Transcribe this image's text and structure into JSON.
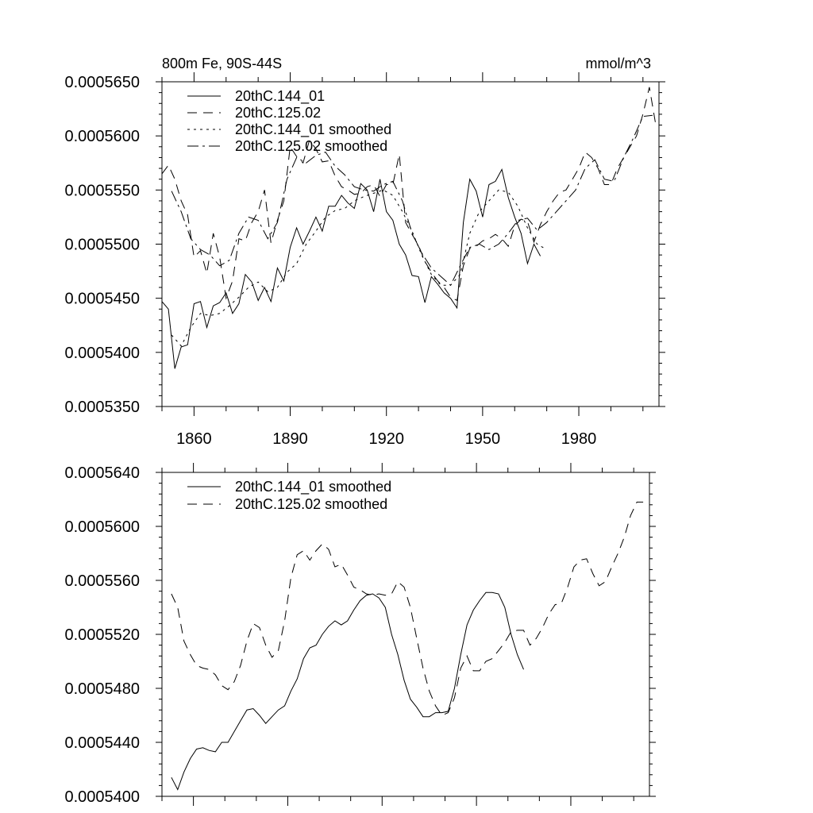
{
  "chart_data": [
    {
      "type": "line",
      "title": "800m Fe, 90S-44S",
      "units": "mmol/m^3",
      "xlim": [
        1850,
        2005
      ],
      "ylim": [
        0.000535,
        0.000565
      ],
      "xticks": [
        1860,
        1890,
        1920,
        1950,
        1980
      ],
      "xtick_labels": [
        "1860",
        "1890",
        "1920",
        "1950",
        "1980"
      ],
      "yticks": [
        0.000535,
        0.00054,
        0.000545,
        0.00055,
        0.000555,
        0.00056,
        0.000565
      ],
      "ytick_labels": [
        "0.0005350",
        "0.0005400",
        "0.0005450",
        "0.0005500",
        "0.0005550",
        "0.0005600",
        "0.0005650"
      ],
      "legend_position": "top-left",
      "series": [
        {
          "name": "20thC.144_01",
          "dash": "",
          "x": [
            1850,
            1852,
            1854,
            1856,
            1858,
            1860,
            1862,
            1864,
            1866,
            1868,
            1870,
            1872,
            1874,
            1876,
            1878,
            1880,
            1882,
            1884,
            1886,
            1888,
            1890,
            1892,
            1894,
            1896,
            1898,
            1900,
            1902,
            1904,
            1906,
            1908,
            1910,
            1912,
            1914,
            1916,
            1918,
            1920,
            1922,
            1924,
            1926,
            1928,
            1930,
            1932,
            1934,
            1936,
            1938,
            1940,
            1942,
            1944,
            1946,
            1948,
            1950,
            1952,
            1954,
            1956,
            1958,
            1960,
            1962,
            1964,
            1966,
            1968,
            1970
          ],
          "y": [
            0.0005447,
            0.000544,
            0.0005385,
            0.0005405,
            0.0005407,
            0.0005445,
            0.0005447,
            0.0005423,
            0.0005443,
            0.0005446,
            0.0005455,
            0.0005436,
            0.0005445,
            0.0005472,
            0.0005465,
            0.0005448,
            0.000546,
            0.0005447,
            0.0005478,
            0.0005466,
            0.0005497,
            0.0005515,
            0.00055,
            0.0005512,
            0.0005525,
            0.0005512,
            0.0005535,
            0.0005535,
            0.0005545,
            0.0005538,
            0.0005533,
            0.0005556,
            0.000555,
            0.000553,
            0.000556,
            0.000553,
            0.0005522,
            0.00055,
            0.000549,
            0.0005471,
            0.000547,
            0.0005446,
            0.000547,
            0.0005463,
            0.0005455,
            0.000545,
            0.0005441,
            0.000552,
            0.000556,
            0.0005549,
            0.0005525,
            0.0005555,
            0.0005558,
            0.0005569,
            0.0005543,
            0.0005525,
            0.000551,
            0.0005482,
            0.00055,
            0.0005489,
            null
          ]
        },
        {
          "name": "20thC.125.02",
          "dash": "12 8",
          "x": [
            1850,
            1852,
            1854,
            1856,
            1858,
            1860,
            1862,
            1864,
            1866,
            1868,
            1870,
            1872,
            1874,
            1876,
            1878,
            1880,
            1882,
            1884,
            1886,
            1888,
            1890,
            1892,
            1894,
            1896,
            1898,
            1900,
            1902,
            1904,
            1906,
            1908,
            1910,
            1912,
            1914,
            1916,
            1918,
            1920,
            1922,
            1924,
            1926,
            1928,
            1930,
            1932,
            1934,
            1936,
            1938,
            1940,
            1942,
            1944,
            1946,
            1948,
            1950,
            1952,
            1954,
            1956,
            1958,
            1960,
            1962,
            1964,
            1966,
            1968,
            1970,
            1972,
            1974,
            1976,
            1978,
            1980,
            1982,
            1984,
            1986,
            1988,
            1990,
            1992,
            1994,
            1996,
            1998,
            2000,
            2002,
            2004
          ],
          "y": [
            0.0005565,
            0.0005573,
            0.000556,
            0.000554,
            0.0005527,
            0.0005488,
            0.0005494,
            0.0005473,
            0.000551,
            0.0005488,
            0.000545,
            0.0005466,
            0.0005505,
            0.0005503,
            0.000552,
            0.000553,
            0.000555,
            0.0005501,
            0.0005522,
            0.000554,
            0.000559,
            0.0005581,
            0.0005575,
            0.0005596,
            0.0005588,
            0.0005576,
            0.0005577,
            0.0005563,
            0.0005553,
            0.000555,
            0.0005546,
            0.0005547,
            0.0005553,
            0.0005555,
            0.0005544,
            0.0005555,
            0.0005555,
            0.0005583,
            0.000552,
            0.0005509,
            0.0005499,
            0.0005484,
            0.0005474,
            0.0005466,
            0.000546,
            0.0005451,
            0.0005448,
            0.000548,
            0.0005496,
            0.0005498,
            0.0005503,
            0.0005505,
            0.0005509,
            0.0005505,
            0.0005498,
            0.0005517,
            0.0005523,
            0.0005521,
            0.0005502,
            0.0005518,
            0.000553,
            0.000554,
            0.0005548,
            0.000555,
            0.000556,
            0.000557,
            0.0005585,
            0.000558,
            0.000557,
            0.0005555,
            0.0005555,
            0.000557,
            0.000558,
            0.000559,
            0.00056,
            0.000562,
            0.0005645,
            0.000561
          ]
        },
        {
          "name": "20thC.144_01 smoothed",
          "dash": "3 5",
          "x": [
            1853,
            1856,
            1859,
            1862,
            1865,
            1868,
            1871,
            1874,
            1877,
            1880,
            1883,
            1886,
            1889,
            1892,
            1895,
            1898,
            1901,
            1904,
            1907,
            1910,
            1913,
            1916,
            1919,
            1922,
            1925,
            1928,
            1931,
            1934,
            1937,
            1940,
            1943,
            1946,
            1949,
            1952,
            1955,
            1958,
            1961,
            1964,
            1967,
            1970
          ],
          "y": [
            0.0005416,
            0.0005406,
            0.0005423,
            0.0005436,
            0.0005434,
            0.0005436,
            0.0005443,
            0.0005451,
            0.000546,
            0.0005465,
            0.0005456,
            0.000546,
            0.0005474,
            0.0005482,
            0.00055,
            0.0005512,
            0.0005525,
            0.0005531,
            0.0005533,
            0.000554,
            0.0005544,
            0.0005547,
            0.000555,
            0.0005545,
            0.000553,
            0.0005512,
            0.000549,
            0.0005472,
            0.0005462,
            0.0005462,
            0.0005472,
            0.000551,
            0.000553,
            0.000554,
            0.000555,
            0.0005548,
            0.0005535,
            0.0005515,
            0.00055,
            0.0005495
          ]
        },
        {
          "name": "20thC.125.02 smoothed",
          "dash": "14 5 3 5",
          "x": [
            1853,
            1856,
            1859,
            1862,
            1865,
            1868,
            1871,
            1874,
            1877,
            1880,
            1883,
            1886,
            1889,
            1892,
            1895,
            1898,
            1901,
            1904,
            1907,
            1910,
            1913,
            1916,
            1919,
            1922,
            1925,
            1928,
            1931,
            1934,
            1937,
            1940,
            1943,
            1946,
            1949,
            1952,
            1955,
            1958,
            1961,
            1964,
            1967,
            1970,
            1973,
            1976,
            1979,
            1982,
            1985,
            1988,
            1991,
            1994,
            1997,
            2000,
            2003
          ],
          "y": [
            0.0005549,
            0.000553,
            0.0005505,
            0.0005495,
            0.000549,
            0.000548,
            0.0005485,
            0.000551,
            0.0005525,
            0.0005522,
            0.0005505,
            0.000552,
            0.000556,
            0.000558,
            0.0005575,
            0.0005582,
            0.0005585,
            0.0005572,
            0.0005564,
            0.0005553,
            0.000555,
            0.0005549,
            0.0005555,
            0.0005558,
            0.000554,
            0.000551,
            0.0005492,
            0.0005478,
            0.000547,
            0.0005462,
            0.000548,
            0.0005497,
            0.00055,
            0.0005495,
            0.00055,
            0.000551,
            0.0005522,
            0.0005524,
            0.0005513,
            0.000552,
            0.000553,
            0.000554,
            0.000555,
            0.000557,
            0.0005578,
            0.000556,
            0.0005558,
            0.000558,
            0.0005598,
            0.0005618,
            0.0005619
          ]
        }
      ]
    },
    {
      "type": "line",
      "title": "",
      "xlim": [
        1850,
        2005
      ],
      "ylim": [
        0.00054,
        0.000564
      ],
      "xticks": [
        1860,
        1890,
        1920,
        1950,
        1980
      ],
      "yticks": [
        0.00054,
        0.000544,
        0.000548,
        0.000552,
        0.000556,
        0.00056,
        0.000564
      ],
      "ytick_labels": [
        "0.0005400",
        "0.0005440",
        "0.0005480",
        "0.0005520",
        "0.0005560",
        "0.0005600",
        "0.0005640"
      ],
      "legend_position": "top-left",
      "series": [
        {
          "name": "20thC.144_01 smoothed",
          "dash": "",
          "x": [
            1853,
            1855,
            1857,
            1859,
            1861,
            1863,
            1865,
            1867,
            1869,
            1871,
            1873,
            1875,
            1877,
            1879,
            1881,
            1883,
            1885,
            1887,
            1889,
            1891,
            1893,
            1895,
            1897,
            1899,
            1901,
            1903,
            1905,
            1907,
            1909,
            1911,
            1913,
            1915,
            1917,
            1919,
            1921,
            1923,
            1925,
            1927,
            1929,
            1931,
            1933,
            1935,
            1937,
            1939,
            1941,
            1943,
            1945,
            1947,
            1949,
            1951,
            1953,
            1955,
            1957,
            1959,
            1961,
            1963,
            1965
          ],
          "y": [
            0.0005414,
            0.0005405,
            0.0005418,
            0.0005428,
            0.0005435,
            0.0005436,
            0.0005434,
            0.0005433,
            0.000544,
            0.000544,
            0.0005448,
            0.0005456,
            0.0005464,
            0.0005465,
            0.000546,
            0.0005454,
            0.0005459,
            0.0005464,
            0.0005467,
            0.0005478,
            0.0005487,
            0.0005502,
            0.000551,
            0.0005512,
            0.000552,
            0.0005526,
            0.000553,
            0.0005527,
            0.000553,
            0.0005538,
            0.0005545,
            0.0005549,
            0.000555,
            0.0005547,
            0.000554,
            0.000552,
            0.0005505,
            0.0005486,
            0.0005472,
            0.0005466,
            0.0005459,
            0.0005459,
            0.0005462,
            0.0005462,
            0.0005463,
            0.000548,
            0.0005505,
            0.0005527,
            0.0005538,
            0.0005545,
            0.0005551,
            0.0005551,
            0.000555,
            0.000554,
            0.000552,
            0.0005505,
            0.0005494
          ]
        },
        {
          "name": "20thC.125.02 smoothed",
          "dash": "12 8",
          "x": [
            1853,
            1855,
            1857,
            1859,
            1861,
            1863,
            1865,
            1867,
            1869,
            1871,
            1873,
            1875,
            1877,
            1879,
            1881,
            1883,
            1885,
            1887,
            1889,
            1891,
            1893,
            1895,
            1897,
            1899,
            1901,
            1903,
            1905,
            1907,
            1909,
            1911,
            1913,
            1915,
            1917,
            1919,
            1921,
            1923,
            1925,
            1927,
            1929,
            1931,
            1933,
            1935,
            1937,
            1939,
            1941,
            1943,
            1945,
            1947,
            1949,
            1951,
            1953,
            1955,
            1957,
            1959,
            1961,
            1963,
            1965,
            1967,
            1969,
            1971,
            1973,
            1975,
            1977,
            1979,
            1981,
            1983,
            1985,
            1987,
            1989,
            1991,
            1993,
            1995,
            1997,
            1999,
            2001,
            2003
          ],
          "y": [
            0.000555,
            0.000554,
            0.0005515,
            0.0005505,
            0.0005497,
            0.0005495,
            0.0005494,
            0.000549,
            0.0005482,
            0.0005479,
            0.0005485,
            0.0005497,
            0.0005515,
            0.0005528,
            0.0005525,
            0.0005512,
            0.0005503,
            0.0005508,
            0.000553,
            0.0005562,
            0.0005579,
            0.0005582,
            0.0005575,
            0.0005582,
            0.0005587,
            0.0005583,
            0.000557,
            0.0005572,
            0.0005564,
            0.0005555,
            0.0005553,
            0.000555,
            0.0005549,
            0.000555,
            0.0005549,
            0.000555,
            0.0005559,
            0.0005555,
            0.000554,
            0.0005517,
            0.0005495,
            0.0005478,
            0.0005467,
            0.000546,
            0.0005462,
            0.0005473,
            0.0005495,
            0.0005504,
            0.0005493,
            0.0005493,
            0.00055,
            0.0005502,
            0.0005508,
            0.0005514,
            0.0005522,
            0.0005523,
            0.0005523,
            0.0005512,
            0.0005517,
            0.0005525,
            0.0005535,
            0.0005542,
            0.0005543,
            0.0005555,
            0.000557,
            0.0005575,
            0.0005576,
            0.0005565,
            0.0005556,
            0.0005559,
            0.000557,
            0.000558,
            0.0005592,
            0.0005608,
            0.0005618,
            0.0005618
          ]
        }
      ]
    }
  ]
}
